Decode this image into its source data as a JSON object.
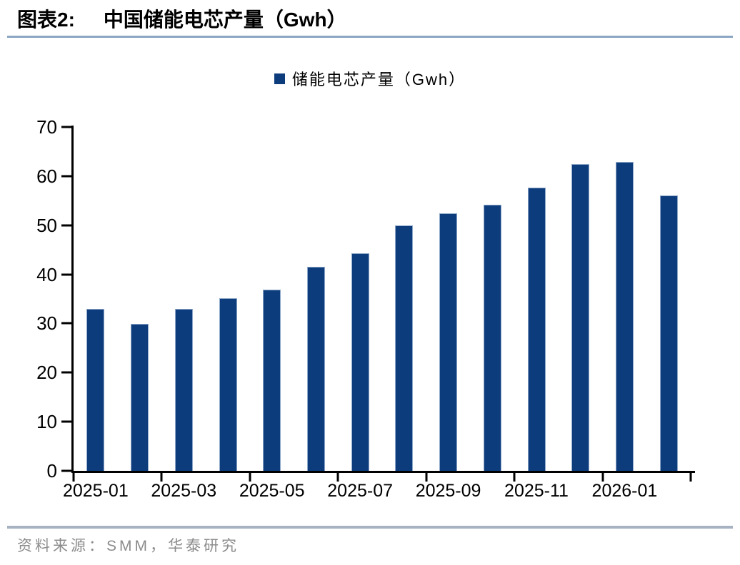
{
  "header": {
    "prefix": "图表2:",
    "title": "中国储能电芯产量（Gwh）"
  },
  "legend": {
    "label": "储能电芯产量（Gwh）"
  },
  "chart_data": {
    "type": "bar",
    "title": "中国储能电芯产量（Gwh）",
    "legend": [
      "储能电芯产量（Gwh）"
    ],
    "legend_position": "top-center",
    "categories": [
      "2025-01",
      "2025-02",
      "2025-03",
      "2025-04",
      "2025-05",
      "2025-06",
      "2025-07",
      "2025-08",
      "2025-09",
      "2025-10",
      "2025-11",
      "2025-12",
      "2026-01",
      "2026-02"
    ],
    "values": [
      32.9,
      29.9,
      32.9,
      35.1,
      36.9,
      41.6,
      44.3,
      49.9,
      52.5,
      54.2,
      57.7,
      62.4,
      62.9,
      56.0
    ],
    "xlabel": "",
    "ylabel": "",
    "unit": "Gwh",
    "ylim": [
      0,
      70
    ],
    "y_ticks": [
      0,
      10,
      20,
      30,
      40,
      50,
      60,
      70
    ],
    "x_tick_labels": [
      "2025-01",
      "2025-03",
      "2025-05",
      "2025-07",
      "2025-09",
      "2025-11",
      "2026-01"
    ],
    "grid": false
  },
  "footer": {
    "source": "资料来源：SMM，华泰研究"
  },
  "colors": {
    "bar_fill": "#0d3c7c",
    "bar_border": "#8ca6c8",
    "title_rule": "#8ba6c3",
    "footer_rule": "#a7b3c2",
    "source_text": "#8c8c8c",
    "axis": "#000000"
  }
}
